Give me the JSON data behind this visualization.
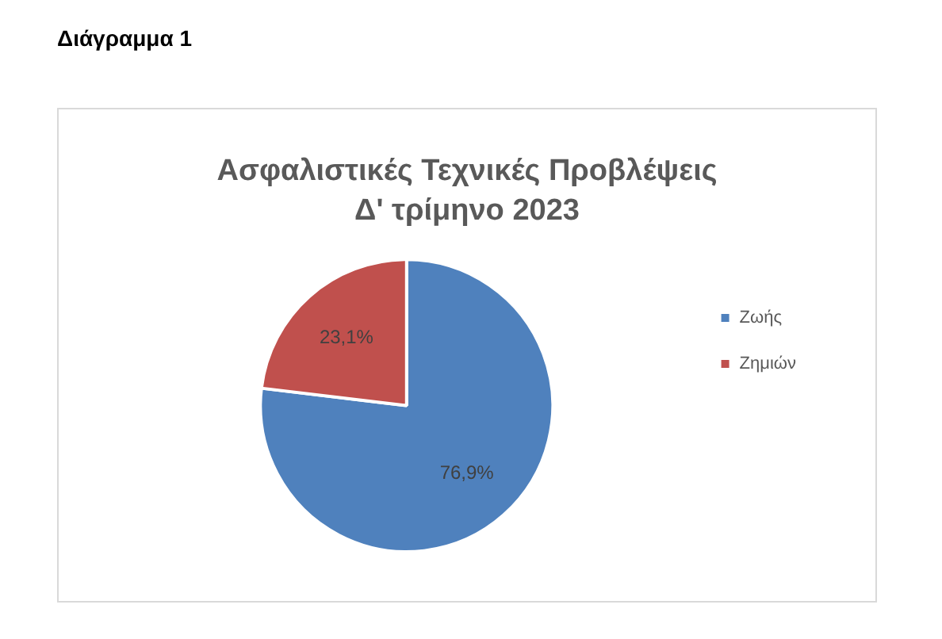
{
  "chart_data": {
    "type": "pie",
    "title": "Ασφαλιστικές Τεχνικές Προβλέψεις",
    "subtitle": "Δ' τρίμηνο 2023",
    "annotations": [
      "Διάγραμμα 1"
    ],
    "categories": [
      "Ζωής",
      "Ζημιών"
    ],
    "values": [
      76.9,
      23.1
    ],
    "colors": [
      "#4f81bd",
      "#c0504d"
    ],
    "value_labels": [
      "76,9%",
      "23,1%"
    ],
    "legend": "right"
  }
}
